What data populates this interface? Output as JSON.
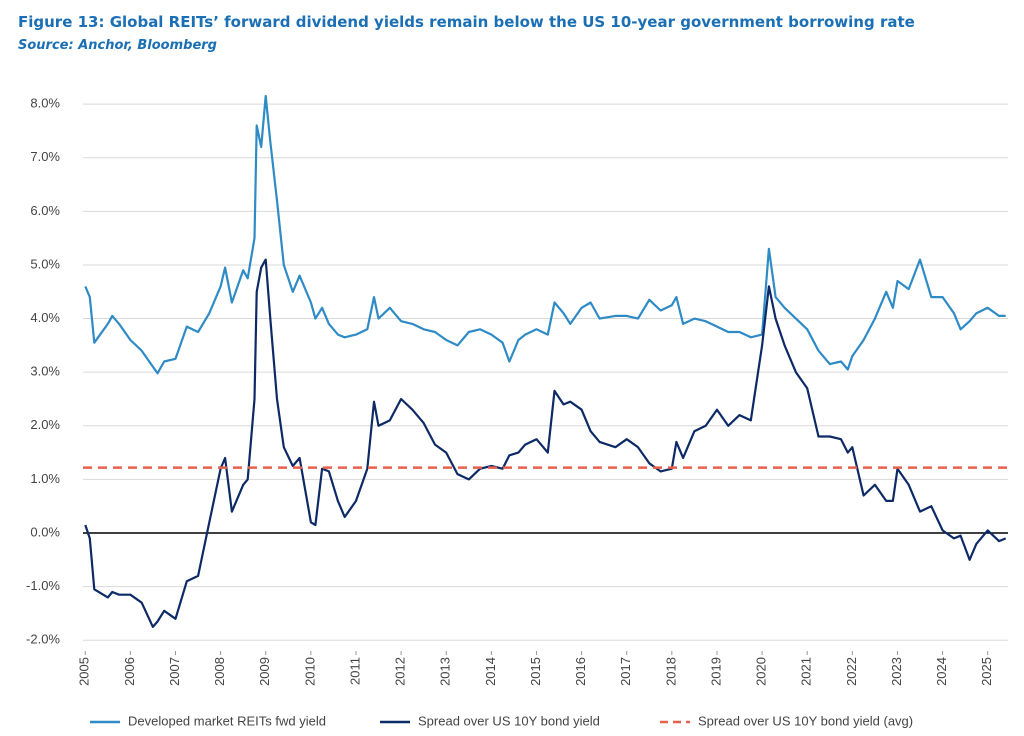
{
  "chart_data": {
    "type": "line",
    "title": "Figure 13: Global REITs’ forward dividend yields remain below the US 10-year government borrowing rate",
    "subtitle": "Source: Anchor, Bloomberg",
    "x": [
      2005.0,
      2005.1,
      2005.2,
      2005.5,
      2005.6,
      2005.75,
      2006.0,
      2006.25,
      2006.5,
      2006.6,
      2006.75,
      2007.0,
      2007.25,
      2007.5,
      2007.75,
      2008.0,
      2008.1,
      2008.25,
      2008.5,
      2008.6,
      2008.75,
      2008.8,
      2008.9,
      2009.0,
      2009.1,
      2009.25,
      2009.4,
      2009.6,
      2009.75,
      2010.0,
      2010.1,
      2010.25,
      2010.4,
      2010.6,
      2010.75,
      2011.0,
      2011.25,
      2011.4,
      2011.5,
      2011.75,
      2012.0,
      2012.25,
      2012.5,
      2012.75,
      2013.0,
      2013.25,
      2013.5,
      2013.75,
      2014.0,
      2014.25,
      2014.4,
      2014.6,
      2014.75,
      2015.0,
      2015.25,
      2015.4,
      2015.6,
      2015.75,
      2016.0,
      2016.2,
      2016.4,
      2016.75,
      2017.0,
      2017.25,
      2017.5,
      2017.75,
      2018.0,
      2018.1,
      2018.25,
      2018.5,
      2018.75,
      2019.0,
      2019.25,
      2019.5,
      2019.75,
      2020.0,
      2020.15,
      2020.3,
      2020.5,
      2020.75,
      2021.0,
      2021.25,
      2021.5,
      2021.75,
      2021.9,
      2022.0,
      2022.25,
      2022.5,
      2022.75,
      2022.9,
      2023.0,
      2023.25,
      2023.5,
      2023.75,
      2024.0,
      2024.25,
      2024.4,
      2024.6,
      2024.75,
      2025.0,
      2025.25,
      2025.4
    ],
    "series": [
      {
        "name": "Developed market REITs fwd yield",
        "color": "#2e8bc6",
        "values": [
          4.6,
          4.4,
          3.55,
          3.9,
          4.05,
          3.9,
          3.6,
          3.4,
          3.1,
          2.98,
          3.2,
          3.25,
          3.85,
          3.75,
          4.1,
          4.6,
          4.95,
          4.3,
          4.9,
          4.75,
          5.5,
          7.6,
          7.2,
          8.15,
          7.3,
          6.2,
          5.0,
          4.5,
          4.8,
          4.3,
          4.0,
          4.2,
          3.9,
          3.7,
          3.65,
          3.7,
          3.8,
          4.4,
          4.0,
          4.2,
          3.95,
          3.9,
          3.8,
          3.75,
          3.6,
          3.5,
          3.75,
          3.8,
          3.7,
          3.55,
          3.2,
          3.6,
          3.7,
          3.8,
          3.7,
          4.3,
          4.1,
          3.9,
          4.2,
          4.3,
          4.0,
          4.05,
          4.05,
          4.0,
          4.35,
          4.15,
          4.25,
          4.4,
          3.9,
          4.0,
          3.95,
          3.85,
          3.75,
          3.75,
          3.65,
          3.7,
          5.3,
          4.4,
          4.2,
          4.0,
          3.8,
          3.4,
          3.15,
          3.2,
          3.05,
          3.3,
          3.6,
          4.0,
          4.5,
          4.2,
          4.7,
          4.55,
          5.1,
          4.4,
          4.4,
          4.1,
          3.8,
          3.95,
          4.1,
          4.2,
          4.05,
          4.05
        ]
      },
      {
        "name": "Spread over US 10Y bond yield",
        "color": "#0d2a66",
        "values": [
          0.15,
          -0.1,
          -1.05,
          -1.2,
          -1.1,
          -1.15,
          -1.15,
          -1.3,
          -1.75,
          -1.65,
          -1.45,
          -1.6,
          -0.9,
          -0.8,
          0.2,
          1.2,
          1.4,
          0.4,
          0.9,
          1.0,
          2.5,
          4.5,
          4.95,
          5.1,
          4.0,
          2.5,
          1.6,
          1.25,
          1.4,
          0.2,
          0.15,
          1.2,
          1.15,
          0.6,
          0.3,
          0.6,
          1.2,
          2.45,
          2.0,
          2.1,
          2.5,
          2.3,
          2.05,
          1.65,
          1.5,
          1.1,
          1.0,
          1.2,
          1.25,
          1.2,
          1.45,
          1.5,
          1.65,
          1.75,
          1.5,
          2.65,
          2.4,
          2.45,
          2.3,
          1.9,
          1.7,
          1.6,
          1.75,
          1.6,
          1.3,
          1.15,
          1.2,
          1.7,
          1.4,
          1.9,
          2.0,
          2.3,
          2.0,
          2.2,
          2.1,
          3.5,
          4.6,
          4.0,
          3.5,
          3.0,
          2.7,
          1.8,
          1.8,
          1.75,
          1.5,
          1.6,
          0.7,
          0.9,
          0.6,
          0.6,
          1.2,
          0.9,
          0.4,
          0.5,
          0.05,
          -0.1,
          -0.05,
          -0.5,
          -0.2,
          0.05,
          -0.15,
          -0.1
        ]
      }
    ],
    "reference_lines": [
      {
        "name": "Spread over US 10Y bond yield (avg)",
        "color": "#e8604c",
        "value": 1.22,
        "style": "dashed"
      }
    ],
    "xlim": [
      2004.95,
      2025.45
    ],
    "xticks": [
      2005,
      2006,
      2007,
      2008,
      2009,
      2010,
      2011,
      2012,
      2013,
      2014,
      2015,
      2016,
      2017,
      2018,
      2019,
      2020,
      2021,
      2022,
      2023,
      2024,
      2025
    ],
    "ylim": [
      -2.2,
      8.3
    ],
    "yticks": [
      {
        "value": -2,
        "label": "-2.0%"
      },
      {
        "value": -1,
        "label": "-1.0%"
      },
      {
        "value": 0,
        "label": "0.0%"
      },
      {
        "value": 1,
        "label": "1.0%"
      },
      {
        "value": 2,
        "label": "2.0%"
      },
      {
        "value": 3,
        "label": "3.0%"
      },
      {
        "value": 4,
        "label": "4.0%"
      },
      {
        "value": 5,
        "label": "5.0%"
      },
      {
        "value": 6,
        "label": "6.0%"
      },
      {
        "value": 7,
        "label": "7.0%"
      },
      {
        "value": 8,
        "label": "8.0%"
      }
    ],
    "grid": true,
    "legend": "bottom"
  }
}
